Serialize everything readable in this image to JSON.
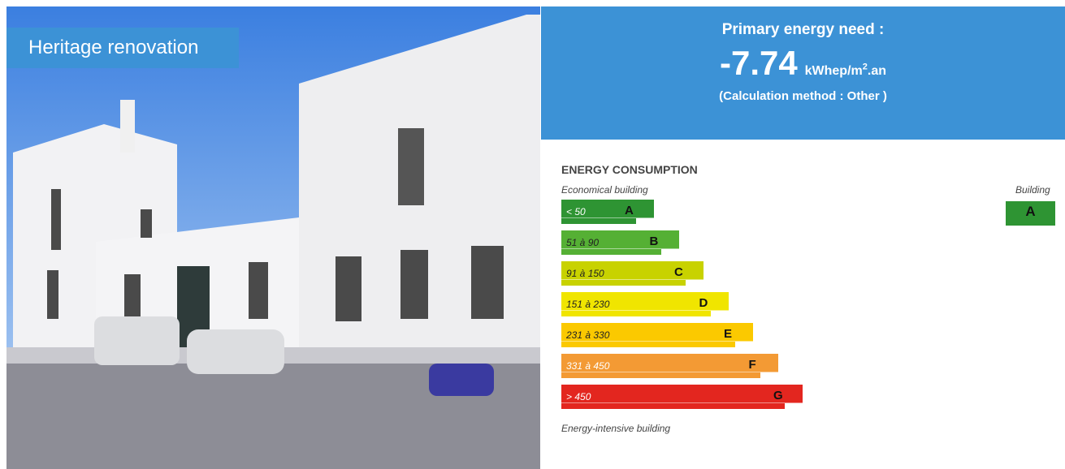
{
  "photo_tag": "Heritage renovation",
  "energy_box": {
    "title": "Primary energy need :",
    "value": "-7.74",
    "unit": "kWhep/m",
    "unit_sup": "2",
    "unit_suffix": ".an",
    "method": "(Calculation method : Other )"
  },
  "consumption": {
    "title": "ENERGY CONSUMPTION",
    "top_label": "Economical building",
    "bottom_label": "Energy-intensive building",
    "building_label": "Building",
    "building_grade": "A",
    "building_color": "#2e9433",
    "ratings": [
      {
        "range": "< 50",
        "letter": "A",
        "color": "#2e9433",
        "text_color": "#ffffff"
      },
      {
        "range": "51 à 90",
        "letter": "B",
        "color": "#55b034",
        "text_color": "#222222"
      },
      {
        "range": "91 à 150",
        "letter": "C",
        "color": "#c8d200",
        "text_color": "#222222"
      },
      {
        "range": "151 à 230",
        "letter": "D",
        "color": "#f0e500",
        "text_color": "#222222"
      },
      {
        "range": "231 à 330",
        "letter": "E",
        "color": "#fbc900",
        "text_color": "#222222"
      },
      {
        "range": "331 à 450",
        "letter": "F",
        "color": "#f39a34",
        "text_color": "#ffffff"
      },
      {
        "range": "> 450",
        "letter": "G",
        "color": "#e3261f",
        "text_color": "#ffffff"
      }
    ]
  }
}
